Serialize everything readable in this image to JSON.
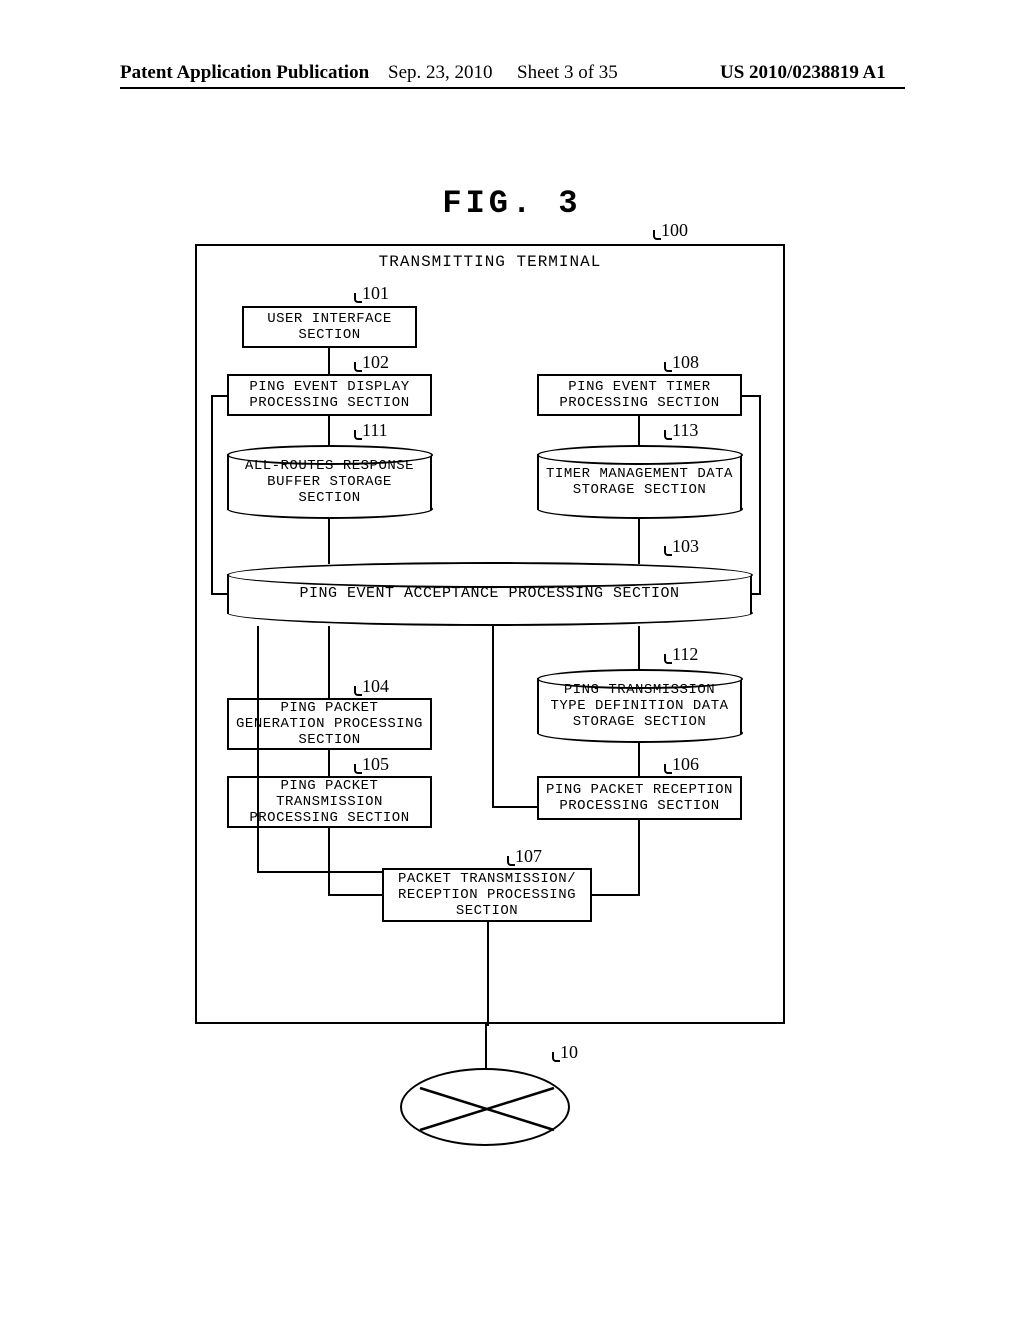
{
  "header": {
    "left": "Patent Application Publication",
    "date": "Sep. 23, 2010",
    "sheet": "Sheet 3 of 35",
    "right": "US 2010/0238819 A1"
  },
  "figure_title": "FIG. 3",
  "refs": {
    "r100": "100",
    "r101": "101",
    "r102": "102",
    "r103": "103",
    "r104": "104",
    "r105": "105",
    "r106": "106",
    "r107": "107",
    "r108": "108",
    "r111": "111",
    "r112": "112",
    "r113": "113",
    "r10": "10"
  },
  "blocks": {
    "outer_title": "TRANSMITTING TERMINAL",
    "b101": "USER INTERFACE\nSECTION",
    "b102": "PING EVENT DISPLAY\nPROCESSING SECTION",
    "b108": "PING EVENT TIMER\nPROCESSING SECTION",
    "b111": "ALL-ROUTES RESPONSE\nBUFFER STORAGE\nSECTION",
    "b113": "TIMER MANAGEMENT DATA\nSTORAGE SECTION",
    "b103": "PING EVENT ACCEPTANCE PROCESSING SECTION",
    "b104": "PING PACKET\nGENERATION PROCESSING\nSECTION",
    "b105": "PING PACKET\nTRANSMISSION\nPROCESSING SECTION",
    "b112": "PING TRANSMISSION\nTYPE DEFINITION DATA\nSTORAGE SECTION",
    "b106": "PING PACKET RECEPTION\nPROCESSING SECTION",
    "b107": "PACKET TRANSMISSION/\nRECEPTION PROCESSING\nSECTION"
  }
}
